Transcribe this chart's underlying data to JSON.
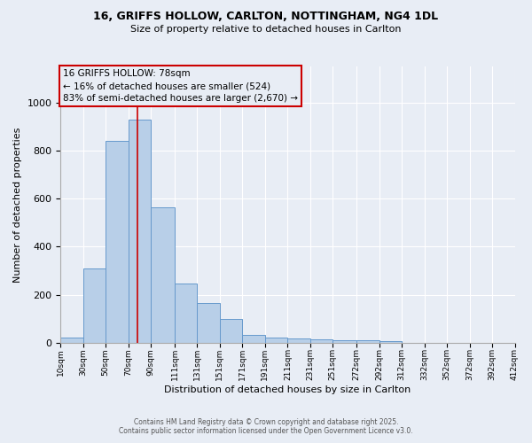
{
  "title_line1": "16, GRIFFS HOLLOW, CARLTON, NOTTINGHAM, NG4 1DL",
  "title_line2": "Size of property relative to detached houses in Carlton",
  "xlabel": "Distribution of detached houses by size in Carlton",
  "ylabel": "Number of detached properties",
  "bar_color": "#b8cfe8",
  "bar_edge_color": "#6699cc",
  "bg_color": "#e8edf5",
  "grid_color": "#ffffff",
  "vline_x": 78,
  "vline_color": "#cc0000",
  "annotation_text": "16 GRIFFS HOLLOW: 78sqm\n← 16% of detached houses are smaller (524)\n83% of semi-detached houses are larger (2,670) →",
  "annotation_box_edge": "#cc0000",
  "bin_edges": [
    10,
    30,
    50,
    70,
    90,
    111,
    131,
    151,
    171,
    191,
    211,
    231,
    251,
    272,
    292,
    312,
    332,
    352,
    372,
    392,
    412
  ],
  "bin_counts": [
    20,
    310,
    840,
    930,
    565,
    245,
    165,
    100,
    32,
    20,
    17,
    13,
    10,
    10,
    5,
    0,
    0,
    0,
    0,
    0
  ],
  "xlim_min": 10,
  "xlim_max": 412,
  "ylim_min": 0,
  "ylim_max": 1150,
  "yticks": [
    0,
    200,
    400,
    600,
    800,
    1000
  ],
  "xtick_labels": [
    "10sqm",
    "30sqm",
    "50sqm",
    "70sqm",
    "90sqm",
    "111sqm",
    "131sqm",
    "151sqm",
    "171sqm",
    "191sqm",
    "211sqm",
    "231sqm",
    "251sqm",
    "272sqm",
    "292sqm",
    "312sqm",
    "332sqm",
    "352sqm",
    "372sqm",
    "392sqm",
    "412sqm"
  ],
  "footer_line1": "Contains HM Land Registry data © Crown copyright and database right 2025.",
  "footer_line2": "Contains public sector information licensed under the Open Government Licence v3.0."
}
